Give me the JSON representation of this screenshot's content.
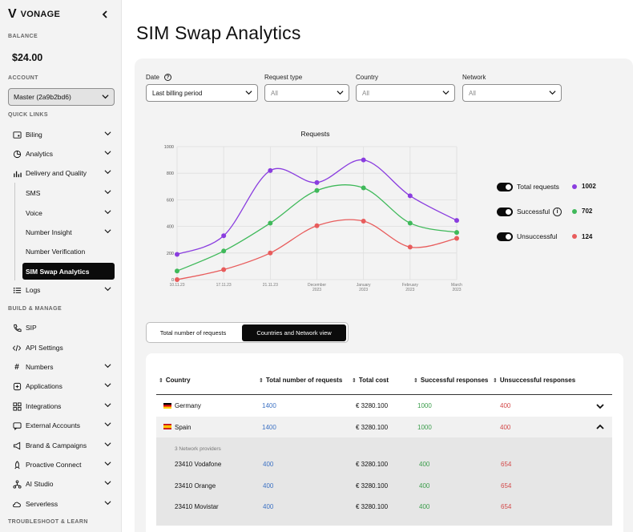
{
  "sidebar": {
    "logo_mark": "V",
    "logo_text": "VONAGE",
    "balance_label": "BALANCE",
    "balance_value": "$24.00",
    "account_label": "ACCOUNT",
    "account_value": "Master (2a9b2bd6)",
    "quick_links_label": "QUICK LINKS",
    "build_manage_label": "BUILD & MANAGE",
    "troubleshoot_label": "TROUBLESHOOT & LEARN",
    "items": {
      "billing": "Biling",
      "analytics": "Analytics",
      "delivery": "Delivery and Quality",
      "sms": "SMS",
      "voice": "Voice",
      "number_insight": "Number Insight",
      "number_verification": "Number Verification",
      "sim_swap": "SIM Swap Analytics",
      "logs": "Logs",
      "sip": "SIP",
      "api_settings": "API Settings",
      "numbers": "Numbers",
      "applications": "Applications",
      "integrations": "Integrations",
      "external_accounts": "External Accounts",
      "brand_campaigns": "Brand & Campaigns",
      "proactive_connect": "Proactive Connect",
      "ai_studio": "AI Studio",
      "serverless": "Serverless"
    }
  },
  "page": {
    "title": "SIM Swap Analytics"
  },
  "filters": {
    "date_label": "Date",
    "date_value": "Last billing period",
    "request_type_label": "Request type",
    "request_type_value": "All",
    "country_label": "Country",
    "country_value": "All",
    "network_label": "Network",
    "network_value": "All"
  },
  "colors": {
    "total": "#8a3ddf",
    "successful": "#3fb95a",
    "unsuccessful": "#e85c5c"
  },
  "chart_data": {
    "type": "line",
    "title": "Requests",
    "categories": [
      "10.11.23",
      "17.11.23",
      "21.11.23",
      "December 2023",
      "January 2023",
      "February 2023",
      "March 2023"
    ],
    "ylim": [
      0,
      1000
    ],
    "yticks": [
      0,
      200,
      400,
      600,
      800,
      1000
    ],
    "grid": true,
    "legend": "right",
    "series": [
      {
        "name": "Total requests",
        "key": "total",
        "x": [
          0,
          1,
          2,
          3,
          4,
          5,
          6
        ],
        "values": [
          190,
          330,
          820,
          730,
          900,
          630,
          445
        ]
      },
      {
        "name": "Successful",
        "key": "successful",
        "x": [
          0,
          1,
          2,
          3,
          4,
          5,
          6
        ],
        "values": [
          65,
          215,
          425,
          670,
          690,
          425,
          355
        ]
      },
      {
        "name": "Unsuccessful",
        "key": "unsuccessful",
        "x": [
          0,
          1,
          2,
          3,
          4,
          5,
          6
        ],
        "values": [
          0,
          75,
          200,
          405,
          440,
          245,
          310
        ]
      }
    ]
  },
  "legend": {
    "total_label": "Total requests",
    "total_value": "1002",
    "successful_label": "Successful",
    "successful_value": "702",
    "unsuccessful_label": "Unsuccessful",
    "unsuccessful_value": "124"
  },
  "view_toggle": {
    "total_label": "Total number of requests",
    "countries_label": "Countries and Network view"
  },
  "table": {
    "headers": {
      "country": "Country",
      "total": "Total number of requests",
      "cost": "Total cost",
      "successful": "Successful responses",
      "unsuccessful": "Unsuccessful responses"
    },
    "rows": [
      {
        "country": "Germany",
        "total": "1400",
        "cost": "€ 3280.100",
        "successful": "1000",
        "unsuccessful": "400"
      },
      {
        "country": "Spain",
        "total": "1400",
        "cost": "€ 3280.100",
        "successful": "1000",
        "unsuccessful": "400"
      }
    ],
    "providers_label": "3 Network providers",
    "providers": [
      {
        "name": "23410 Vodafone",
        "total": "400",
        "cost": "€ 3280.100",
        "successful": "400",
        "unsuccessful": "654"
      },
      {
        "name": "23410 Orange",
        "total": "400",
        "cost": "€ 3280.100",
        "successful": "400",
        "unsuccessful": "654"
      },
      {
        "name": "23410 Movistar",
        "total": "400",
        "cost": "€ 3280.100",
        "successful": "400",
        "unsuccessful": "654"
      }
    ]
  }
}
